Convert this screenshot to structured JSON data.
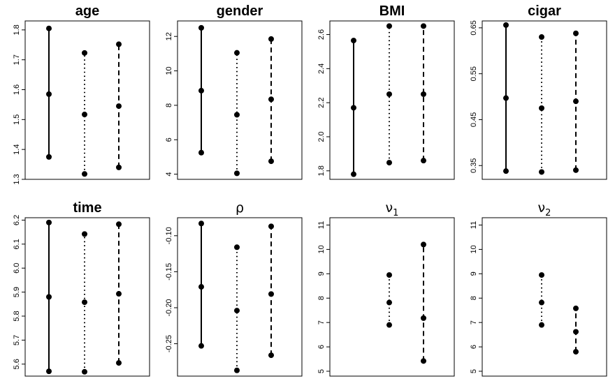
{
  "chart_data": [
    {
      "type": "interval",
      "title": "age",
      "ylim": [
        1.3,
        1.83
      ],
      "yticks": [
        "1.3",
        "1.4",
        "1.5",
        "1.6",
        "1.7",
        "1.8"
      ],
      "ytick_values": [
        1.3,
        1.4,
        1.5,
        1.6,
        1.7,
        1.8
      ],
      "series": [
        {
          "line_style": "solid",
          "lower": 1.375,
          "mid": 1.585,
          "upper": 1.805
        },
        {
          "line_style": "dotted",
          "lower": 1.318,
          "mid": 1.517,
          "upper": 1.723
        },
        {
          "line_style": "dashed",
          "lower": 1.34,
          "mid": 1.545,
          "upper": 1.752
        }
      ]
    },
    {
      "type": "interval",
      "title": "gender",
      "ylim": [
        3.7,
        12.9
      ],
      "yticks": [
        "4",
        "6",
        "8",
        "10",
        "12"
      ],
      "ytick_values": [
        4,
        6,
        8,
        10,
        12
      ],
      "series": [
        {
          "line_style": "solid",
          "lower": 5.25,
          "mid": 8.85,
          "upper": 12.5
        },
        {
          "line_style": "dotted",
          "lower": 4.05,
          "mid": 7.45,
          "upper": 11.05
        },
        {
          "line_style": "dashed",
          "lower": 4.75,
          "mid": 8.35,
          "upper": 11.85
        }
      ]
    },
    {
      "type": "interval",
      "title": "BMI",
      "ylim": [
        1.75,
        2.68
      ],
      "yticks": [
        "1.8",
        "2.0",
        "2.2",
        "2.4",
        "2.6"
      ],
      "ytick_values": [
        1.8,
        2.0,
        2.2,
        2.4,
        2.6
      ],
      "series": [
        {
          "line_style": "solid",
          "lower": 1.78,
          "mid": 2.17,
          "upper": 2.565
        },
        {
          "line_style": "dotted",
          "lower": 1.848,
          "mid": 2.25,
          "upper": 2.65
        },
        {
          "line_style": "dashed",
          "lower": 1.86,
          "mid": 2.25,
          "upper": 2.65
        }
      ]
    },
    {
      "type": "interval",
      "title": "cigar",
      "ylim": [
        0.32,
        0.665
      ],
      "yticks": [
        "0.35",
        "0.45",
        "0.55",
        "0.65"
      ],
      "ytick_values": [
        0.35,
        0.45,
        0.55,
        0.65
      ],
      "series": [
        {
          "line_style": "solid",
          "lower": 0.338,
          "mid": 0.497,
          "upper": 0.656
        },
        {
          "line_style": "dotted",
          "lower": 0.336,
          "mid": 0.475,
          "upper": 0.63
        },
        {
          "line_style": "dashed",
          "lower": 0.34,
          "mid": 0.49,
          "upper": 0.638
        }
      ]
    },
    {
      "type": "interval",
      "title": "time",
      "ylim": [
        5.55,
        6.21
      ],
      "yticks": [
        "5.6",
        "5.7",
        "5.8",
        "5.9",
        "6.0",
        "6.1",
        "6.2"
      ],
      "ytick_values": [
        5.6,
        5.7,
        5.8,
        5.9,
        6.0,
        6.1,
        6.2
      ],
      "series": [
        {
          "line_style": "solid",
          "lower": 5.57,
          "mid": 5.88,
          "upper": 6.19
        },
        {
          "line_style": "dotted",
          "lower": 5.568,
          "mid": 5.858,
          "upper": 6.142
        },
        {
          "line_style": "dashed",
          "lower": 5.605,
          "mid": 5.893,
          "upper": 6.183
        }
      ]
    },
    {
      "type": "interval",
      "title": "ρ",
      "ylim": [
        -0.295,
        -0.075
      ],
      "yticks": [
        "-0.25",
        "-0.20",
        "-0.15",
        "-0.10"
      ],
      "ytick_values": [
        -0.25,
        -0.2,
        -0.15,
        -0.1
      ],
      "series": [
        {
          "line_style": "solid",
          "lower": -0.253,
          "mid": -0.171,
          "upper": -0.083
        },
        {
          "line_style": "dotted",
          "lower": -0.287,
          "mid": -0.204,
          "upper": -0.116
        },
        {
          "line_style": "dashed",
          "lower": -0.266,
          "mid": -0.181,
          "upper": -0.087
        }
      ]
    },
    {
      "type": "interval",
      "title": "ν",
      "title_subscript": "1",
      "ylim": [
        4.8,
        11.3
      ],
      "yticks": [
        "5",
        "6",
        "7",
        "8",
        "9",
        "10",
        "11"
      ],
      "ytick_values": [
        5,
        6,
        7,
        8,
        9,
        10,
        11
      ],
      "series": [
        {
          "line_style": "dotted",
          "lower": 6.9,
          "mid": 7.82,
          "upper": 8.95
        },
        {
          "line_style": "dashed",
          "lower": 5.42,
          "mid": 7.18,
          "upper": 10.2
        }
      ]
    },
    {
      "type": "interval",
      "title": "ν",
      "title_subscript": "2",
      "ylim": [
        4.8,
        11.3
      ],
      "yticks": [
        "5",
        "6",
        "7",
        "8",
        "9",
        "10",
        "11"
      ],
      "ytick_values": [
        5,
        6,
        7,
        8,
        9,
        10,
        11
      ],
      "series": [
        {
          "line_style": "dotted",
          "lower": 6.9,
          "mid": 7.82,
          "upper": 8.95
        },
        {
          "line_style": "dashed",
          "lower": 5.8,
          "mid": 6.62,
          "upper": 7.58
        }
      ]
    }
  ]
}
